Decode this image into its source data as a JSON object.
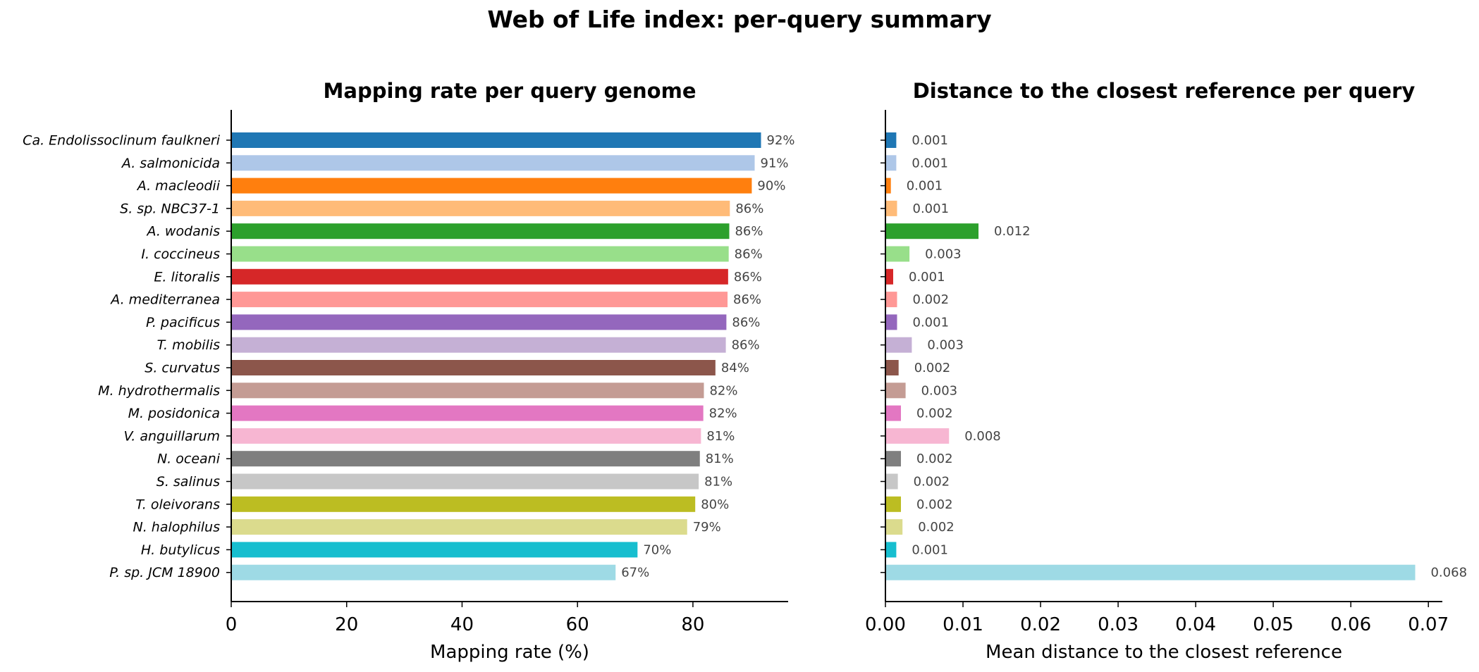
{
  "figure": {
    "title": "Web of Life index: per-query summary"
  },
  "chart_data": [
    {
      "type": "bar",
      "orientation": "horizontal",
      "title": "Mapping rate per query genome",
      "xlabel": "Mapping rate (%)",
      "ylabel": "",
      "xlim": [
        0,
        96.5
      ],
      "xticks": [
        "0",
        "20",
        "40",
        "60",
        "80"
      ],
      "xtick_values": [
        0,
        20,
        40,
        60,
        80
      ],
      "grid": false,
      "value_suffix": "%",
      "categories": [
        "Ca. Endolissoclinum faulkneri",
        "A. salmonicida",
        "A. macleodii",
        "S. sp. NBC37-1",
        "A. wodanis",
        "I. coccineus",
        "E. litoralis",
        "A. mediterranea",
        "P. pacificus",
        "T. mobilis",
        "S. curvatus",
        "M. hydrothermalis",
        "M. posidonica",
        "V. anguillarum",
        "N. oceani",
        "S. salinus",
        "T. oleivorans",
        "N. halophilus",
        "H. butylicus",
        "P. sp. JCM 18900"
      ],
      "values": [
        91.8,
        90.7,
        90.2,
        86.4,
        86.3,
        86.2,
        86.1,
        86.0,
        85.8,
        85.7,
        83.9,
        81.9,
        81.8,
        81.4,
        81.2,
        81.0,
        80.4,
        79.0,
        70.4,
        66.6
      ],
      "data_labels": [
        "92%",
        "91%",
        "90%",
        "86%",
        "86%",
        "86%",
        "86%",
        "86%",
        "86%",
        "86%",
        "84%",
        "82%",
        "82%",
        "81%",
        "81%",
        "81%",
        "80%",
        "79%",
        "70%",
        "67%"
      ]
    },
    {
      "type": "bar",
      "orientation": "horizontal",
      "title": "Distance to the closest reference per query",
      "xlabel": "Mean distance to the closest reference",
      "ylabel": "",
      "xlim": [
        0,
        0.0718
      ],
      "xticks": [
        "0.00",
        "0.01",
        "0.02",
        "0.03",
        "0.04",
        "0.05",
        "0.06",
        "0.07"
      ],
      "xtick_values": [
        0,
        0.01,
        0.02,
        0.03,
        0.04,
        0.05,
        0.06,
        0.07
      ],
      "grid": false,
      "categories": [
        "Ca. Endolissoclinum faulkneri",
        "A. salmonicida",
        "A. macleodii",
        "S. sp. NBC37-1",
        "A. wodanis",
        "I. coccineus",
        "E. litoralis",
        "A. mediterranea",
        "P. pacificus",
        "T. mobilis",
        "S. curvatus",
        "M. hydrothermalis",
        "M. posidonica",
        "V. anguillarum",
        "N. oceani",
        "S. salinus",
        "T. oleivorans",
        "N. halophilus",
        "H. butylicus",
        "P. sp. JCM 18900"
      ],
      "values": [
        0.0014,
        0.0014,
        0.0007,
        0.0015,
        0.012,
        0.0031,
        0.001,
        0.0015,
        0.0015,
        0.0034,
        0.0017,
        0.0026,
        0.002,
        0.0082,
        0.002,
        0.0016,
        0.002,
        0.0022,
        0.0014,
        0.0683
      ],
      "data_labels": [
        "0.001",
        "0.001",
        "0.001",
        "0.001",
        "0.012",
        "0.003",
        "0.001",
        "0.002",
        "0.001",
        "0.003",
        "0.002",
        "0.003",
        "0.002",
        "0.008",
        "0.002",
        "0.002",
        "0.002",
        "0.002",
        "0.001",
        "0.068"
      ]
    }
  ],
  "colors": [
    "#1f77b4",
    "#aec7e8",
    "#ff7f0e",
    "#ffbb78",
    "#2ca02c",
    "#98df8a",
    "#d62728",
    "#ff9896",
    "#9467bd",
    "#c5b0d5",
    "#8c564b",
    "#c49c94",
    "#e377c2",
    "#f7b6d2",
    "#7f7f7f",
    "#c7c7c7",
    "#bcbd22",
    "#dbdb8d",
    "#17becf",
    "#9edae5"
  ]
}
